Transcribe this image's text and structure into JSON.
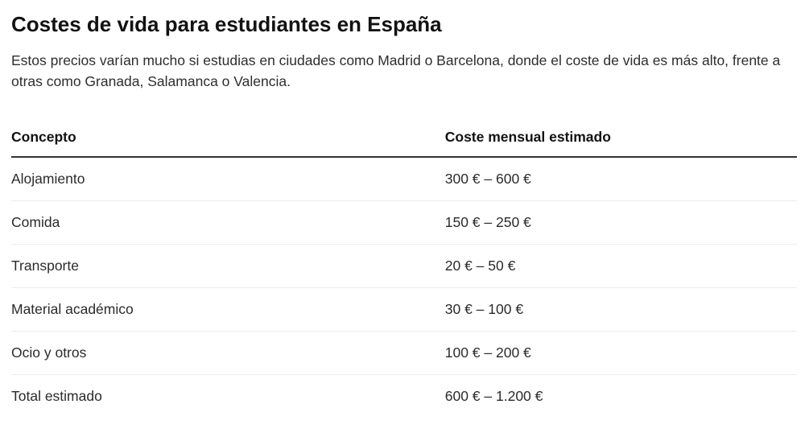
{
  "article": {
    "title": "Costes de vida para estudiantes en España",
    "description": "Estos precios varían mucho si estudias en ciudades como Madrid o Barcelona, donde el coste de vida es más alto, frente a otras como Granada, Salamanca o Valencia."
  },
  "table": {
    "columns": [
      "Concepto",
      "Coste mensual estimado"
    ],
    "rows": [
      {
        "concept": "Alojamiento",
        "cost": "300 € – 600 €"
      },
      {
        "concept": "Comida",
        "cost": "150 € – 250 €"
      },
      {
        "concept": "Transporte",
        "cost": "20 € – 50 €"
      },
      {
        "concept": "Material académico",
        "cost": "30 € – 100 €"
      },
      {
        "concept": "Ocio y otros",
        "cost": "100 € – 200 €"
      },
      {
        "concept": "Total estimado",
        "cost": "600 € – 1.200 €"
      }
    ]
  },
  "colors": {
    "background": "#ffffff",
    "heading": "#121212",
    "body_text": "#2e2e2e",
    "cell_text": "#2b2b2b",
    "header_border": "#333333",
    "row_border": "#ececec"
  }
}
